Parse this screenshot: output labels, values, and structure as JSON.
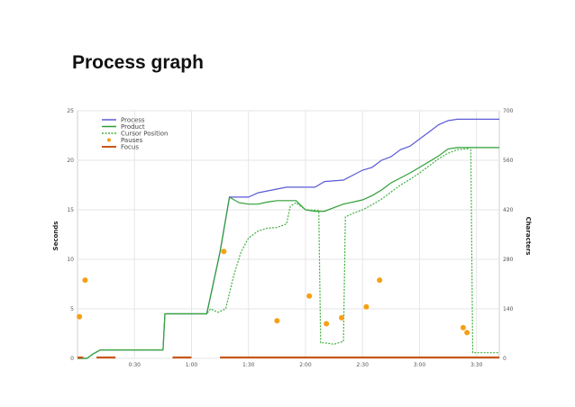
{
  "slide": {
    "title": "Process graph"
  },
  "chart_data": {
    "type": "line",
    "xlabel": "",
    "ylabel_left": "Seconds",
    "ylabel_right": "Characters",
    "xlim": [
      0,
      222
    ],
    "ylim_left": [
      0,
      25
    ],
    "ylim_right": [
      0,
      700
    ],
    "x_ticks": [
      {
        "v": 30,
        "label": "0:30"
      },
      {
        "v": 60,
        "label": "1:00"
      },
      {
        "v": 90,
        "label": "1:30"
      },
      {
        "v": 120,
        "label": "2:00"
      },
      {
        "v": 150,
        "label": "2:30"
      },
      {
        "v": 180,
        "label": "3:00"
      },
      {
        "v": 210,
        "label": "3:30"
      }
    ],
    "y_left_ticks": [
      0,
      5,
      10,
      15,
      20,
      25
    ],
    "y_right_ticks": [
      0,
      140,
      280,
      420,
      560,
      700
    ],
    "grid": true,
    "legend_position": "top-left",
    "series": [
      {
        "name": "Process",
        "color": "#5a5ad6",
        "axis": "right",
        "style": "solid",
        "points": [
          [
            0,
            0
          ],
          [
            5,
            0
          ],
          [
            8,
            12
          ],
          [
            12,
            24
          ],
          [
            20,
            24
          ],
          [
            45,
            24
          ],
          [
            46,
            126
          ],
          [
            68,
            126
          ],
          [
            75,
            300
          ],
          [
            80,
            456
          ],
          [
            90,
            456
          ],
          [
            95,
            468
          ],
          [
            110,
            484
          ],
          [
            120,
            484
          ],
          [
            125,
            484
          ],
          [
            130,
            500
          ],
          [
            140,
            504
          ],
          [
            150,
            532
          ],
          [
            155,
            540
          ],
          [
            160,
            560
          ],
          [
            165,
            570
          ],
          [
            170,
            590
          ],
          [
            175,
            600
          ],
          [
            180,
            620
          ],
          [
            185,
            640
          ],
          [
            190,
            660
          ],
          [
            195,
            672
          ],
          [
            200,
            676
          ],
          [
            222,
            676
          ]
        ]
      },
      {
        "name": "Product",
        "color": "#2e9e36",
        "axis": "right",
        "style": "solid",
        "points": [
          [
            0,
            0
          ],
          [
            5,
            0
          ],
          [
            8,
            12
          ],
          [
            12,
            24
          ],
          [
            20,
            24
          ],
          [
            45,
            24
          ],
          [
            46,
            126
          ],
          [
            68,
            126
          ],
          [
            75,
            300
          ],
          [
            80,
            456
          ],
          [
            85,
            440
          ],
          [
            90,
            436
          ],
          [
            95,
            436
          ],
          [
            100,
            442
          ],
          [
            105,
            446
          ],
          [
            115,
            446
          ],
          [
            120,
            420
          ],
          [
            125,
            416
          ],
          [
            130,
            416
          ],
          [
            135,
            426
          ],
          [
            140,
            436
          ],
          [
            150,
            448
          ],
          [
            155,
            460
          ],
          [
            160,
            476
          ],
          [
            165,
            496
          ],
          [
            170,
            510
          ],
          [
            175,
            524
          ],
          [
            180,
            540
          ],
          [
            185,
            556
          ],
          [
            190,
            572
          ],
          [
            195,
            592
          ],
          [
            200,
            596
          ],
          [
            210,
            596
          ],
          [
            222,
            596
          ]
        ]
      },
      {
        "name": "Cursor Position",
        "color": "#40b040",
        "axis": "right",
        "style": "dashed",
        "points": [
          [
            0,
            0
          ],
          [
            5,
            0
          ],
          [
            8,
            12
          ],
          [
            12,
            24
          ],
          [
            20,
            24
          ],
          [
            45,
            24
          ],
          [
            46,
            126
          ],
          [
            68,
            126
          ],
          [
            70,
            140
          ],
          [
            74,
            130
          ],
          [
            78,
            140
          ],
          [
            82,
            230
          ],
          [
            86,
            300
          ],
          [
            90,
            340
          ],
          [
            95,
            360
          ],
          [
            100,
            368
          ],
          [
            105,
            370
          ],
          [
            110,
            380
          ],
          [
            112,
            430
          ],
          [
            115,
            440
          ],
          [
            120,
            420
          ],
          [
            127,
            418
          ],
          [
            128,
            44
          ],
          [
            130,
            44
          ],
          [
            135,
            40
          ],
          [
            140,
            48
          ],
          [
            141,
            400
          ],
          [
            145,
            410
          ],
          [
            150,
            420
          ],
          [
            155,
            434
          ],
          [
            160,
            450
          ],
          [
            165,
            470
          ],
          [
            170,
            490
          ],
          [
            175,
            506
          ],
          [
            180,
            524
          ],
          [
            185,
            544
          ],
          [
            190,
            564
          ],
          [
            195,
            580
          ],
          [
            200,
            590
          ],
          [
            205,
            592
          ],
          [
            207,
            596
          ],
          [
            208,
            16
          ],
          [
            222,
            16
          ]
        ]
      },
      {
        "name": "Pauses",
        "color": "#f5a014",
        "axis": "left",
        "style": "points",
        "points": [
          [
            1,
            4.2
          ],
          [
            4,
            7.9
          ],
          [
            77,
            10.8
          ],
          [
            105,
            3.8
          ],
          [
            122,
            6.3
          ],
          [
            131,
            3.5
          ],
          [
            139,
            4.1
          ],
          [
            152,
            5.2
          ],
          [
            159,
            7.9
          ],
          [
            203,
            3.1
          ],
          [
            205,
            2.6
          ]
        ]
      },
      {
        "name": "Focus",
        "color": "#c8581a",
        "axis": "left",
        "style": "segments",
        "segments": [
          [
            0,
            3
          ],
          [
            10,
            20
          ],
          [
            50,
            60
          ],
          [
            75,
            222
          ]
        ]
      }
    ]
  }
}
